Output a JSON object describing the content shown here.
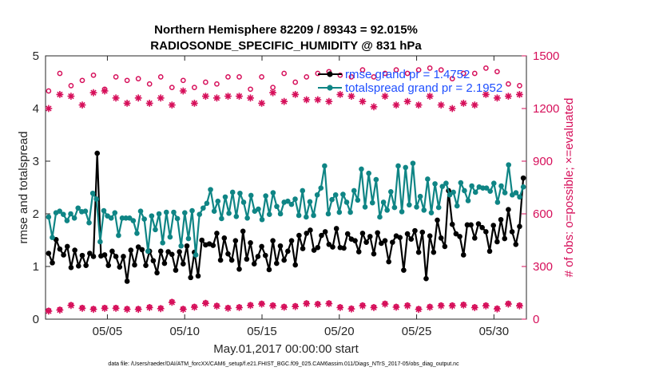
{
  "colors": {
    "rmse": "#000000",
    "spread": "#0f8585",
    "obs": "#d60f5a",
    "legend_text": "#1f4fff",
    "axis": "#262626"
  },
  "chart_data": {
    "type": "line",
    "title_line1": "Northern Hemisphere 82209 / 89343 = 92.015%",
    "title_line2": "RADIOSONDE_SPECIFIC_HUMIDITY @ 831 hPa",
    "xlabel": "May.01,2017 00:00:00 start",
    "ylabel_left": "rmse and totalspread",
    "ylabel_right": "# of obs: o=possible; ×=evaluated",
    "footer": "data file: /Users/raeder/DAI/ATM_forcXX/CAM6_setup/f.e21.FHIST_BGC.f09_025.CAM6assim.011/Diags_NTrS_2017-05/obs_diag_output.nc",
    "x_range_days": [
      0.5,
      31.6
    ],
    "x_tick_days": [
      4.5,
      9.5,
      14.5,
      19.5,
      24.5,
      29.5
    ],
    "x_tick_labels": [
      "05/05",
      "05/10",
      "05/15",
      "05/20",
      "05/25",
      "05/30"
    ],
    "y_left_range": [
      0,
      5
    ],
    "y_left_ticks": [
      "0",
      "1",
      "2",
      "3",
      "4",
      "5"
    ],
    "y_right_range": [
      0,
      1500
    ],
    "y_right_ticks": [
      "0",
      "300",
      "600",
      "900",
      "1200",
      "1500"
    ],
    "legend": [
      {
        "name": "rmse grand pr = 1.4752"
      },
      {
        "name": "totalspread grand pr = 2.1952"
      }
    ],
    "series": [
      {
        "name": "rmse",
        "axis": "left",
        "marker": "filled-circle",
        "values": [
          1.25,
          1.07,
          1.51,
          1.33,
          1.22,
          1.38,
          0.98,
          1.31,
          1.01,
          1.21,
          1.02,
          1.25,
          1.19,
          3.15,
          1.2,
          1.22,
          1.02,
          1.29,
          1.19,
          0.99,
          1.19,
          0.72,
          1.31,
          1.03,
          1.37,
          1.32,
          1.02,
          1.29,
          1.11,
          0.88,
          1.29,
          1.06,
          1.28,
          1.23,
          0.93,
          1.28,
          1.05,
          1.39,
          0.79,
          1.27,
          0.82,
          1.5,
          1.41,
          1.43,
          1.4,
          1.63,
          1.12,
          1.54,
          1.24,
          1.12,
          1.49,
          0.95,
          1.67,
          1.14,
          1.45,
          1.05,
          1.19,
          1.38,
          1.21,
          0.94,
          1.49,
          1.06,
          1.39,
          1.12,
          1.29,
          1.49,
          1.03,
          1.59,
          1.34,
          1.63,
          1.69,
          1.31,
          1.36,
          1.59,
          1.66,
          1.42,
          1.37,
          1.72,
          1.36,
          1.35,
          1.62,
          1.52,
          1.49,
          1.28,
          1.63,
          1.46,
          1.57,
          1.24,
          1.64,
          1.44,
          1.49,
          1.09,
          1.46,
          1.58,
          1.55,
          0.93,
          1.62,
          1.52,
          1.68,
          1.27,
          1.65,
          0.77,
          1.58,
          1.27,
          1.88,
          1.54,
          1.38,
          2.44,
          1.8,
          1.62,
          1.57,
          1.22,
          1.79,
          1.79,
          1.54,
          1.81,
          1.74,
          1.66,
          1.29,
          1.78,
          1.47,
          1.89,
          1.53,
          2.08,
          1.66,
          1.42,
          1.76,
          2.68
        ]
      },
      {
        "name": "totalspread",
        "axis": "left",
        "marker": "filled-circle",
        "values": [
          1.94,
          1.55,
          2.02,
          2.05,
          1.99,
          1.87,
          2.0,
          1.92,
          2.11,
          2.04,
          2.05,
          1.83,
          2.39,
          2.28,
          1.47,
          2.06,
          1.96,
          1.92,
          2.02,
          1.59,
          1.92,
          1.92,
          1.92,
          1.87,
          1.63,
          2.05,
          1.9,
          1.29,
          1.96,
          1.7,
          2.0,
          1.45,
          2.03,
          1.56,
          2.03,
          1.91,
          1.39,
          2.02,
          1.53,
          2.06,
          1.22,
          1.99,
          2.11,
          2.2,
          2.46,
          2.05,
          2.24,
          1.91,
          2.32,
          2.01,
          2.41,
          1.95,
          2.39,
          2.22,
          1.92,
          2.35,
          2.05,
          2.09,
          1.89,
          2.34,
          1.99,
          2.4,
          2.14,
          2.0,
          2.22,
          2.24,
          2.18,
          2.28,
          1.97,
          2.44,
          1.94,
          2.23,
          1.97,
          2.36,
          2.49,
          2.91,
          2.0,
          2.27,
          2.36,
          2.03,
          2.37,
          2.22,
          2.03,
          2.44,
          2.26,
          2.85,
          2.13,
          2.77,
          2.21,
          2.65,
          1.94,
          2.22,
          2.07,
          2.42,
          2.12,
          2.91,
          2.04,
          2.88,
          2.17,
          2.96,
          2.13,
          2.33,
          2.07,
          2.66,
          2.02,
          2.57,
          2.12,
          2.52,
          2.58,
          2.36,
          2.41,
          2.15,
          2.59,
          2.44,
          2.25,
          2.53,
          2.41,
          2.51,
          2.49,
          2.49,
          2.43,
          2.58,
          2.22,
          2.53,
          2.4,
          2.93,
          2.36,
          2.4,
          2.32,
          2.51
        ]
      },
      {
        "name": "obs possible",
        "axis": "right",
        "marker": "open-circle",
        "values": [
          1300,
          1350,
          1350,
          1400,
          1310,
          1400,
          1330,
          1380,
          1380,
          1360,
          1380,
          1360,
          1390,
          1400,
          1360,
          1310,
          1360,
          1340,
          1380,
          1400,
          1320,
          1360,
          1310,
          1340,
          1370,
          1310,
          1370,
          1340,
          1380,
          1320,
          1380,
          1330,
          1360,
          1320,
          1370,
          1330,
          1360,
          1310,
          1360,
          1320,
          1340,
          1310,
          1350,
          1360,
          1310,
          1340,
          1300,
          1320,
          1380,
          1300,
          1350,
          1380,
          1330,
          1400,
          1310,
          1350,
          1370,
          1380,
          1330,
          1390,
          1320,
          1370,
          1360,
          1400,
          1350,
          1310,
          1350,
          1350,
          1380,
          1380,
          1340,
          1370,
          1400,
          1300,
          1390,
          1410,
          1370,
          1420,
          1390,
          1370,
          1430,
          1380,
          1420,
          1360,
          1420,
          1400,
          1390,
          1380,
          1370,
          1380,
          1400,
          1350,
          1430,
          1420,
          1370,
          1390,
          1400,
          1390,
          1360,
          1420,
          1370,
          1410,
          1430,
          1380,
          1420,
          1420,
          1380,
          1430,
          1370,
          1440,
          1410,
          1400,
          1380,
          1430,
          1400,
          1440,
          1380,
          1430,
          1390,
          1420,
          1410,
          1350,
          1420,
          1340,
          1400,
          1340,
          1330,
          1300
        ]
      },
      {
        "name": "obs evaluated",
        "axis": "right",
        "marker": "star",
        "values": [
          1200,
          1240,
          1270,
          1280,
          1230,
          1240,
          1270,
          1230,
          1290,
          1220,
          1260,
          1220,
          1290,
          1280,
          1240,
          1300,
          1270,
          1210,
          1260,
          1240,
          1270,
          1230,
          1290,
          1220,
          1260,
          1210,
          1290,
          1230,
          1250,
          1220,
          1260,
          1220,
          1270,
          1220,
          1260,
          1240,
          1300,
          1230,
          1280,
          1230,
          1250,
          1200,
          1270,
          1200,
          1260,
          1260,
          1240,
          1260,
          1270,
          1250,
          1280,
          1270,
          1280,
          1260,
          1260,
          1280,
          1270,
          1230,
          1270,
          1230,
          1290,
          1230,
          1270,
          1240,
          1260,
          1210,
          1280,
          1260,
          1250,
          1250,
          1220,
          1250,
          1250,
          1260,
          1280,
          1240,
          1250,
          1220,
          1280,
          1260,
          1210,
          1270,
          1270,
          1250,
          1240,
          1240,
          1270,
          1210,
          1260,
          1240,
          1270,
          1250,
          1280,
          1220,
          1270,
          1220,
          1240,
          1270,
          1290,
          1220,
          1290,
          1220,
          1270,
          1270,
          1250,
          1220,
          1270,
          1250,
          1200,
          1270,
          1270,
          1230,
          1230,
          1280,
          1220,
          1260,
          1210,
          1280,
          1220,
          1270,
          1260,
          1280,
          1220,
          1270,
          1210,
          1260,
          1280,
          1260
        ]
      },
      {
        "name": "obs possible (low)",
        "axis": "right",
        "marker": "open-circle",
        "values": [
          50,
          55,
          60,
          56,
          90,
          58,
          82,
          60,
          70,
          66,
          54,
          72,
          60,
          70,
          80,
          66,
          44,
          54,
          66,
          45,
          50,
          60,
          52,
          70,
          60,
          44,
          64,
          70,
          86,
          45,
          64,
          86,
          60,
          100,
          42,
          48,
          60,
          86,
          120,
          72,
          44,
          64,
          94,
          82,
          74,
          78,
          52,
          60,
          66,
          72,
          80,
          70,
          64,
          58,
          82,
          60,
          56,
          90,
          80,
          60,
          80,
          96,
          84,
          72,
          88,
          62,
          76,
          60,
          60,
          92,
          72,
          80,
          88,
          70,
          80,
          92,
          82,
          86,
          70,
          78,
          76,
          62,
          64,
          66,
          80,
          70,
          72,
          70,
          64,
          60,
          90,
          74,
          60,
          72,
          70,
          48,
          80,
          62,
          72,
          60,
          70,
          90,
          72,
          72,
          52,
          80,
          60,
          40,
          80,
          60,
          62,
          84,
          60,
          72,
          70,
          62,
          64,
          80,
          52,
          70,
          62,
          78,
          60,
          90,
          68,
          70,
          80,
          72
        ]
      },
      {
        "name": "obs evaluated (low)",
        "axis": "right",
        "marker": "star",
        "values": [
          46,
          52,
          58,
          52,
          86,
          54,
          78,
          56,
          66,
          62,
          50,
          68,
          56,
          66,
          76,
          62,
          40,
          50,
          62,
          41,
          46,
          56,
          48,
          66,
          56,
          40,
          60,
          66,
          82,
          41,
          60,
          82,
          56,
          96,
          38,
          44,
          56,
          82,
          116,
          68,
          40,
          60,
          90,
          78,
          70,
          74,
          48,
          56,
          62,
          68,
          76,
          66,
          60,
          54,
          78,
          56,
          52,
          86,
          76,
          56,
          76,
          92,
          80,
          68,
          84,
          58,
          72,
          56,
          56,
          88,
          68,
          76,
          84,
          66,
          76,
          88,
          78,
          82,
          66,
          74,
          72,
          58,
          60,
          62,
          76,
          66,
          68,
          66,
          60,
          56,
          86,
          70,
          56,
          68,
          66,
          44,
          76,
          58,
          68,
          56,
          66,
          86,
          68,
          68,
          48,
          76,
          56,
          36,
          76,
          56,
          58,
          80,
          56,
          68,
          66,
          58,
          60,
          76,
          48,
          66,
          58,
          74,
          56,
          86,
          64,
          66,
          76,
          68
        ]
      }
    ]
  }
}
